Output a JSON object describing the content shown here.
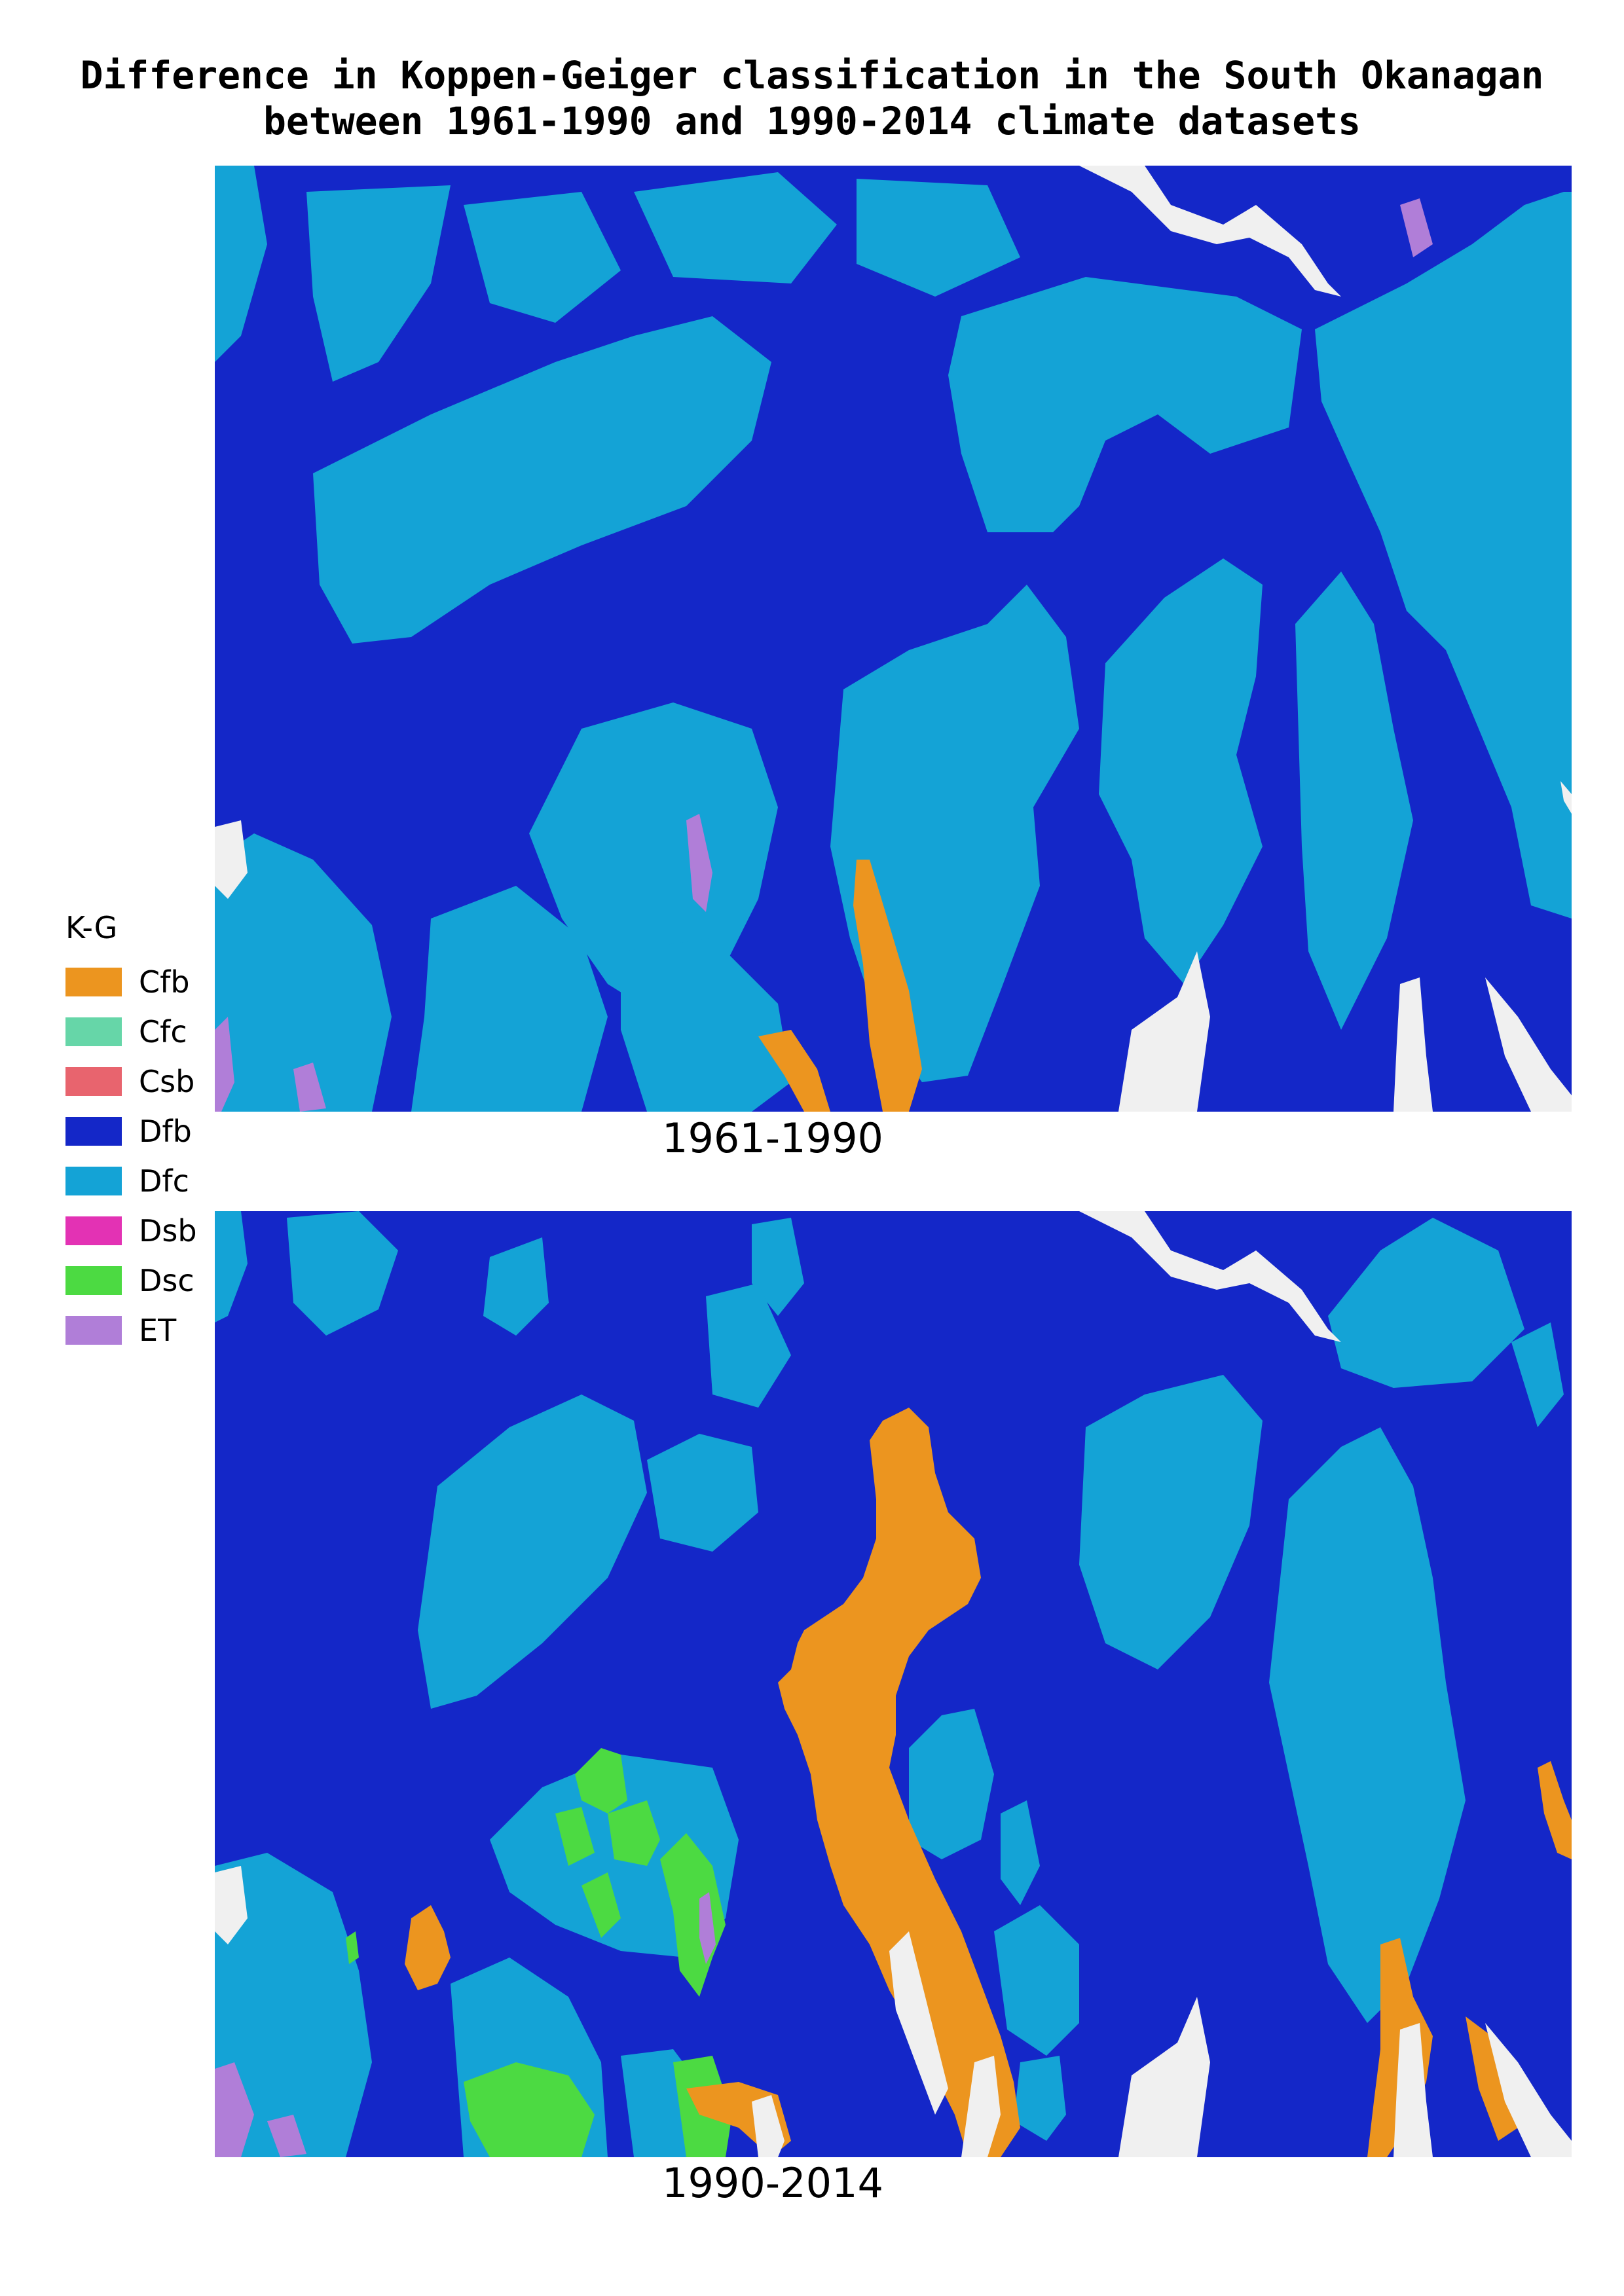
{
  "title": {
    "line1": "Difference in Koppen-Geiger classification in the South Okanagan",
    "line2": "between 1961-1990 and 1990-2014 climate datasets"
  },
  "panels": [
    {
      "id": "top",
      "label": "1961-1990"
    },
    {
      "id": "bottom",
      "label": "1990-2014"
    }
  ],
  "legend": {
    "title": "K-G",
    "items": [
      {
        "code": "Cfb",
        "color": "#EC951F"
      },
      {
        "code": "Cfc",
        "color": "#66D6A8"
      },
      {
        "code": "Csb",
        "color": "#E8646E"
      },
      {
        "code": "Dfb",
        "color": "#1427C8"
      },
      {
        "code": "Dfc",
        "color": "#14A3D6"
      },
      {
        "code": "Dsb",
        "color": "#E332B4"
      },
      {
        "code": "Dsc",
        "color": "#4CDA42"
      },
      {
        "code": "ET",
        "color": "#B07ED8"
      }
    ]
  },
  "colors": {
    "water": "#F0F0F0"
  }
}
